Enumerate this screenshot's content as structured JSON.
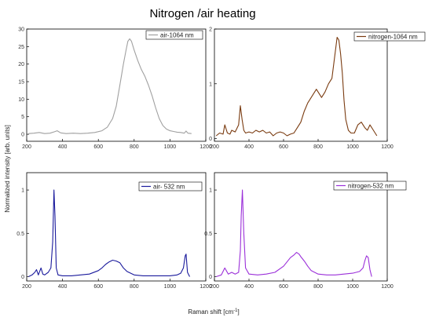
{
  "figure": {
    "title": "Nitrogen /air heating",
    "xlabel_prefix": "Raman shift [cm",
    "xlabel_sup": "-1",
    "xlabel_suffix": "]",
    "ylabel": "Normalized intensity [arb. units]"
  },
  "chart_data": [
    {
      "type": "line",
      "panel": "top-left",
      "legend_position": "top-right",
      "xlim": [
        200,
        1200
      ],
      "ylim": [
        -2,
        30
      ],
      "xticks": [
        200,
        400,
        600,
        800,
        1000,
        1200
      ],
      "yticks": [
        0,
        5,
        10,
        15,
        20,
        25,
        30
      ],
      "series": [
        {
          "name": "air-1064 nm",
          "color": "#a0a0a0",
          "x": [
            210,
            240,
            270,
            300,
            330,
            355,
            370,
            390,
            420,
            460,
            500,
            540,
            580,
            620,
            650,
            680,
            700,
            720,
            740,
            755,
            765,
            775,
            785,
            800,
            820,
            840,
            860,
            880,
            900,
            920,
            940,
            960,
            980,
            1000,
            1020,
            1040,
            1060,
            1080,
            1090,
            1100,
            1120
          ],
          "y": [
            0.2,
            0.3,
            0.5,
            0.2,
            0.3,
            0.7,
            1.0,
            0.4,
            0.2,
            0.3,
            0.2,
            0.3,
            0.5,
            1.0,
            2.0,
            4.5,
            8.0,
            14.0,
            20.0,
            24.0,
            26.5,
            27.2,
            26.5,
            24.0,
            21.0,
            18.5,
            16.5,
            14.0,
            11.0,
            7.5,
            4.5,
            2.5,
            1.5,
            1.0,
            0.8,
            0.6,
            0.5,
            0.3,
            0.9,
            0.3,
            0.2
          ]
        }
      ]
    },
    {
      "type": "line",
      "panel": "top-right",
      "legend_position": "top-right",
      "xlim": [
        200,
        1200
      ],
      "ylim": [
        -0.05,
        2.0
      ],
      "xticks": [
        200,
        400,
        600,
        800,
        1000,
        1200
      ],
      "yticks": [
        0,
        1,
        2
      ],
      "series": [
        {
          "name": "nitrogen-1064 nm",
          "color": "#7a3b10",
          "x": [
            210,
            230,
            250,
            260,
            275,
            290,
            300,
            320,
            340,
            350,
            360,
            370,
            380,
            400,
            420,
            440,
            460,
            480,
            500,
            520,
            540,
            560,
            580,
            600,
            620,
            640,
            660,
            680,
            700,
            720,
            740,
            760,
            780,
            790,
            800,
            810,
            820,
            840,
            860,
            880,
            900,
            910,
            920,
            930,
            940,
            950,
            960,
            975,
            990,
            1010,
            1030,
            1050,
            1070,
            1085,
            1100,
            1120,
            1140
          ],
          "y": [
            0.05,
            0.1,
            0.08,
            0.25,
            0.1,
            0.08,
            0.15,
            0.12,
            0.25,
            0.6,
            0.35,
            0.15,
            0.1,
            0.12,
            0.1,
            0.15,
            0.12,
            0.15,
            0.1,
            0.12,
            0.05,
            0.1,
            0.12,
            0.1,
            0.05,
            0.08,
            0.1,
            0.2,
            0.3,
            0.5,
            0.65,
            0.75,
            0.85,
            0.9,
            0.85,
            0.8,
            0.75,
            0.85,
            1.0,
            1.1,
            1.6,
            1.85,
            1.8,
            1.55,
            1.2,
            0.7,
            0.35,
            0.15,
            0.1,
            0.1,
            0.25,
            0.3,
            0.2,
            0.15,
            0.25,
            0.15,
            0.05
          ]
        }
      ]
    },
    {
      "type": "line",
      "panel": "bottom-left",
      "legend_position": "top-right",
      "xlim": [
        200,
        1200
      ],
      "ylim": [
        -0.05,
        1.2
      ],
      "xticks": [
        200,
        400,
        600,
        800,
        1000,
        1200
      ],
      "yticks": [
        0,
        0.5,
        1.0
      ],
      "series": [
        {
          "name": "air- 532 nm",
          "color": "#1a1a9c",
          "x": [
            210,
            230,
            245,
            255,
            265,
            280,
            290,
            300,
            320,
            335,
            345,
            352,
            358,
            365,
            375,
            400,
            450,
            500,
            550,
            600,
            620,
            640,
            660,
            680,
            700,
            720,
            740,
            760,
            800,
            850,
            900,
            950,
            1000,
            1040,
            1060,
            1075,
            1085,
            1090,
            1098,
            1110
          ],
          "y": [
            0.0,
            0.02,
            0.05,
            0.08,
            0.02,
            0.1,
            0.03,
            0.02,
            0.05,
            0.1,
            0.4,
            1.0,
            0.7,
            0.1,
            0.02,
            0.01,
            0.01,
            0.02,
            0.03,
            0.07,
            0.1,
            0.14,
            0.17,
            0.19,
            0.18,
            0.16,
            0.1,
            0.06,
            0.02,
            0.01,
            0.01,
            0.01,
            0.01,
            0.02,
            0.04,
            0.1,
            0.24,
            0.26,
            0.05,
            0.0
          ]
        }
      ]
    },
    {
      "type": "line",
      "panel": "bottom-right",
      "legend_position": "top-right",
      "xlim": [
        200,
        1200
      ],
      "ylim": [
        -0.05,
        1.2
      ],
      "xticks": [
        200,
        400,
        600,
        800,
        1000,
        1200
      ],
      "yticks": [
        0,
        0.5,
        1.0
      ],
      "series": [
        {
          "name": "nitrogen-532 nm",
          "color": "#9b30d9",
          "x": [
            210,
            240,
            260,
            280,
            300,
            320,
            340,
            350,
            355,
            362,
            370,
            380,
            400,
            450,
            500,
            550,
            600,
            620,
            640,
            660,
            675,
            690,
            700,
            720,
            740,
            760,
            800,
            850,
            900,
            950,
            1000,
            1040,
            1060,
            1070,
            1080,
            1090,
            1100,
            1110
          ],
          "y": [
            0.0,
            0.02,
            0.1,
            0.03,
            0.05,
            0.03,
            0.05,
            0.3,
            0.7,
            1.0,
            0.5,
            0.1,
            0.03,
            0.02,
            0.03,
            0.05,
            0.12,
            0.17,
            0.22,
            0.25,
            0.28,
            0.26,
            0.23,
            0.18,
            0.12,
            0.07,
            0.03,
            0.02,
            0.02,
            0.03,
            0.04,
            0.06,
            0.1,
            0.18,
            0.24,
            0.22,
            0.08,
            0.0
          ]
        }
      ]
    }
  ]
}
